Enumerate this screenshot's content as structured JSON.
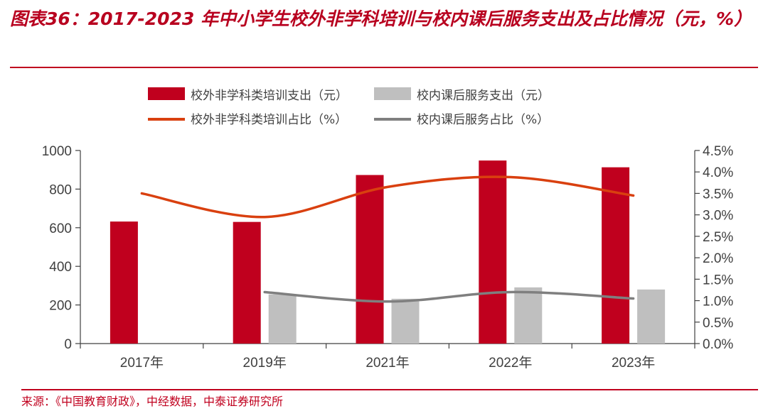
{
  "title": "图表36：2017-2023 年中小学生校外非学科培训与校内课后服务支出及占比情况（元，%）",
  "source": "来源：《中国教育财政》，中经数据，中泰证券研究所",
  "colors": {
    "accent": "#c0001e",
    "bar1": "#c0001e",
    "bar2": "#bfbfbf",
    "line1": "#d9400f",
    "line2": "#7f7f7f"
  },
  "chart_data": {
    "type": "bar",
    "categories": [
      "2017年",
      "2019年",
      "2021年",
      "2022年",
      "2023年"
    ],
    "series": [
      {
        "name": "校外非学科类培训支出（元）",
        "kind": "bar",
        "axis": "left",
        "values": [
          632,
          630,
          873,
          948,
          913
        ]
      },
      {
        "name": "校内课后服务支出（元）",
        "kind": "bar",
        "axis": "left",
        "values": [
          null,
          255,
          232,
          291,
          280
        ]
      },
      {
        "name": "校外非学科类培训占比（%）",
        "kind": "line",
        "axis": "right",
        "values": [
          3.5,
          2.95,
          3.65,
          3.88,
          3.45
        ]
      },
      {
        "name": "校内课后服务占比（%）",
        "kind": "line",
        "axis": "right",
        "values": [
          null,
          1.2,
          0.98,
          1.2,
          1.05
        ]
      }
    ],
    "left_axis": {
      "min": 0,
      "max": 1000,
      "step": 200,
      "ticks": [
        "0",
        "200",
        "400",
        "600",
        "800",
        "1000"
      ]
    },
    "right_axis": {
      "min": 0,
      "max": 4.5,
      "step": 0.5,
      "ticks": [
        "0.0%",
        "0.5%",
        "1.0%",
        "1.5%",
        "2.0%",
        "2.5%",
        "3.0%",
        "3.5%",
        "4.0%",
        "4.5%"
      ]
    },
    "legend_position": "top",
    "grid": false
  }
}
